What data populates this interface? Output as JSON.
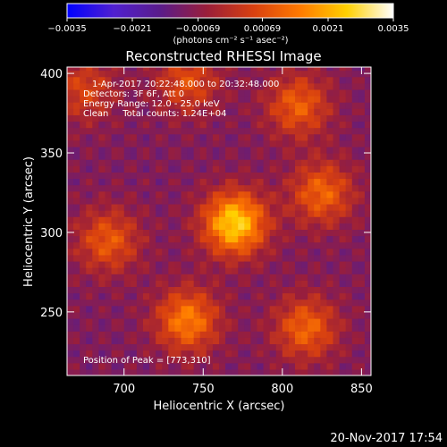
{
  "chart_data": {
    "type": "heatmap",
    "title": "Reconstructed RHESSI Image",
    "xlabel": "Heliocentric X (arcsec)",
    "ylabel": "Heliocentric Y (arcsec)",
    "xlim": [
      664,
      856
    ],
    "ylim": [
      210,
      404
    ],
    "xticks": [
      700,
      750,
      800,
      850
    ],
    "yticks": [
      250,
      300,
      350,
      400
    ],
    "colorbar": {
      "ticks": [
        -0.0035,
        -0.0021,
        -0.00069,
        0.00069,
        0.0021,
        0.0035
      ],
      "tick_labels": [
        "−0.0035",
        "−0.0021",
        "−0.00069",
        "0.00069",
        "0.0021",
        "0.0035"
      ],
      "units": "(photons cm⁻² s⁻¹ asec⁻²)",
      "range": [
        -0.0035,
        0.0035
      ],
      "colors": [
        "#0000ff",
        "#5020d0",
        "#5a1c8a",
        "#9a1e3a",
        "#d84010",
        "#ff7a00",
        "#ffd000",
        "#ffffff"
      ]
    },
    "annotations": [
      "1-Apr-2017 20:22:48.000 to 20:32:48.000",
      "Detectors: 3F 6F, Att 0",
      "Energy Range: 12.0 - 25.0 keV",
      "Clean     Total counts: 1.24E+04"
    ],
    "peak_label": "Position of Peak = [773,310]",
    "peak": [
      773,
      310
    ],
    "sources": [
      {
        "x": 770,
        "y": 306,
        "intensity": 0.0035
      },
      {
        "x": 740,
        "y": 245,
        "intensity": 0.0024
      },
      {
        "x": 815,
        "y": 240,
        "intensity": 0.002
      },
      {
        "x": 690,
        "y": 295,
        "intensity": 0.0018
      },
      {
        "x": 825,
        "y": 325,
        "intensity": 0.002
      },
      {
        "x": 740,
        "y": 395,
        "intensity": 0.0016
      },
      {
        "x": 810,
        "y": 380,
        "intensity": 0.0019
      },
      {
        "x": 675,
        "y": 390,
        "intensity": 0.0014
      }
    ]
  },
  "footer_timestamp": "20-Nov-2017 17:54"
}
